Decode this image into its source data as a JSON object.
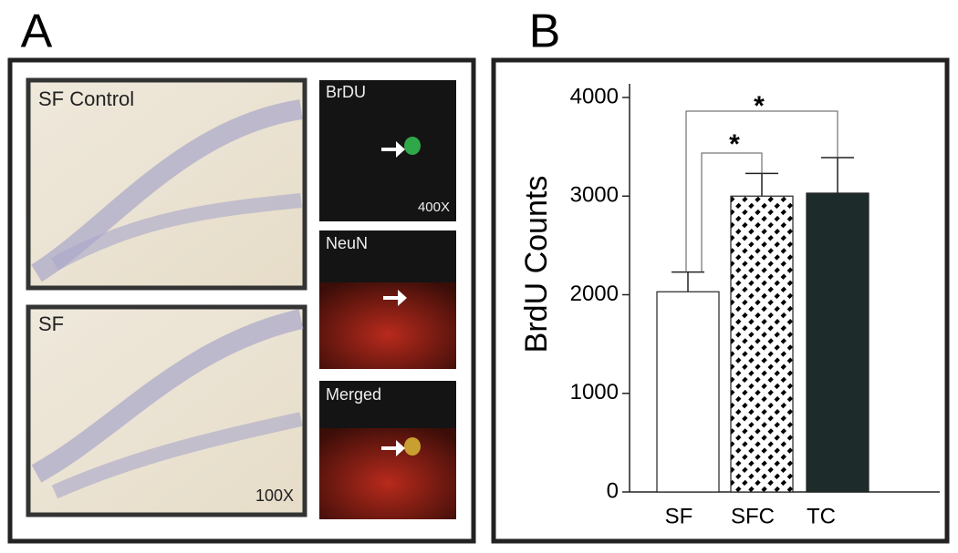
{
  "panel_a": {
    "label": "A",
    "images": [
      {
        "label": "SF Control"
      },
      {
        "label": "SF",
        "magnification": "100X"
      }
    ],
    "channels": [
      {
        "label": "BrDU",
        "magnification": "400X"
      },
      {
        "label": "NeuN"
      },
      {
        "label": "Merged"
      }
    ]
  },
  "chart_data": {
    "type": "bar",
    "panel_label": "B",
    "ylabel": "BrdU Counts",
    "categories": [
      "SF",
      "SFC",
      "TC"
    ],
    "values": [
      2030,
      3000,
      3030
    ],
    "errors": [
      200,
      230,
      360
    ],
    "colors": [
      "#ffffff",
      "#000000",
      "#1e2b2b"
    ],
    "hatch": [
      false,
      true,
      false
    ],
    "ylim": [
      0,
      4000
    ],
    "yticks": [
      0,
      1000,
      2000,
      3000,
      4000
    ],
    "annotations": [
      "*",
      "*"
    ]
  }
}
